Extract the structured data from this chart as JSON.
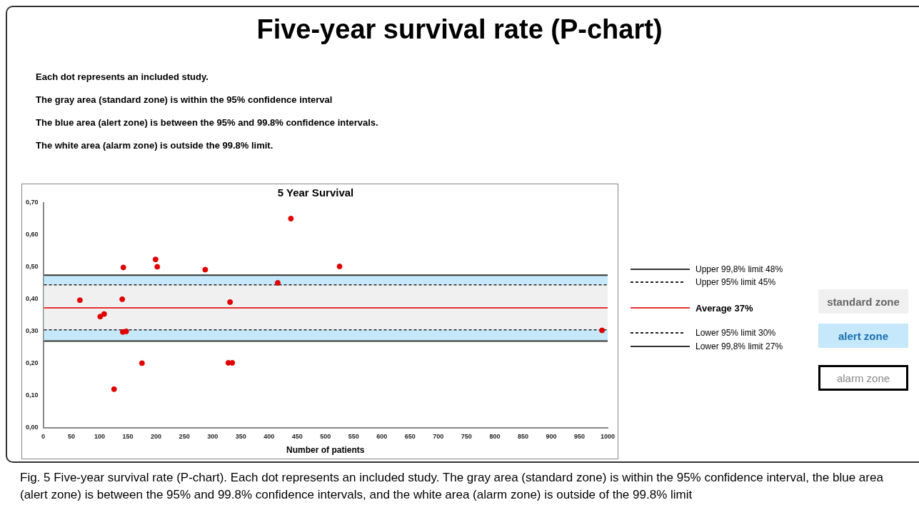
{
  "chart_data": {
    "type": "scatter",
    "title": "Five-year survival rate (P-chart)",
    "subtitle": "5 Year Survival",
    "xlabel": "Number of patients",
    "x": [
      65,
      101,
      108,
      125.5,
      140,
      142,
      141,
      147,
      175,
      199,
      202,
      287,
      331,
      328,
      335,
      415.5,
      438.8,
      525,
      990
    ],
    "values": [
      0.397,
      0.346,
      0.354,
      0.12,
      0.4,
      0.499,
      0.298,
      0.3,
      0.201,
      0.524,
      0.501,
      0.492,
      0.391,
      0.202,
      0.202,
      0.451,
      0.651,
      0.502,
      0.303
    ],
    "color": "#e00000",
    "marker": "circle",
    "xlim": [
      0,
      1000
    ],
    "xticks": [
      0,
      50,
      100,
      150,
      200,
      250,
      300,
      350,
      400,
      450,
      500,
      550,
      600,
      650,
      700,
      750,
      800,
      850,
      900,
      950,
      1000
    ],
    "ylim": [
      0,
      0.7
    ],
    "yticks": [
      {
        "value": 0,
        "label": "0,00"
      },
      {
        "value": 0.1,
        "label": "0,10"
      },
      {
        "value": 0.2,
        "label": "0,20"
      },
      {
        "value": 0.3,
        "label": "0,30"
      },
      {
        "value": 0.4,
        "label": "0,40"
      },
      {
        "value": 0.5,
        "label": "0,50"
      },
      {
        "value": 0.6,
        "label": "0,60"
      },
      {
        "value": 0.7,
        "label": "0,70"
      }
    ],
    "grid": false,
    "bands": [
      {
        "axis": "y",
        "from": 0.27,
        "to": 0.475,
        "color": "#c5e8fb"
      },
      {
        "axis": "y",
        "from": 0.305,
        "to": 0.445,
        "color": "#f0f0f0"
      }
    ],
    "ref_lines": [
      {
        "axis": "y",
        "value": 0.475,
        "color": "#333333",
        "line_style": "solid"
      },
      {
        "axis": "y",
        "value": 0.445,
        "color": "#222222",
        "line_style": "dashed"
      },
      {
        "axis": "y",
        "value": 0.373,
        "color": "#e83030",
        "line_style": "solid"
      },
      {
        "axis": "y",
        "value": 0.305,
        "color": "#222222",
        "line_style": "dashed"
      },
      {
        "axis": "y",
        "value": 0.27,
        "color": "#333333",
        "line_style": "solid"
      }
    ],
    "annotations": [
      "Each dot represents an included study.",
      "The gray area  (standard zone)  is within the 95% confidence interval",
      "The blue area (alert zone) is between the 95% and 99.8% confidence intervals.",
      "The white area    (alarm zone)    is outside the 99.8% limit.",
      "Upper 99,8% limit  48%",
      "Upper 95% limit  45%",
      "Average 37%",
      "Lower 95% limit  30%",
      "Lower 99,8% limit  27%",
      "alert zone",
      "standard zone",
      "alarm zone",
      "Fig. 5 Five-year survival rate (P-chart). Each dot represents an included study. The gray area (standard zone) is within the 95% confidence interval, the blue area (alert zone) is between the 95% and 99.8% confidence intervals, and the white area (alarm zone) is outside of the 99.8% limit"
    ],
    "legend": false
  }
}
